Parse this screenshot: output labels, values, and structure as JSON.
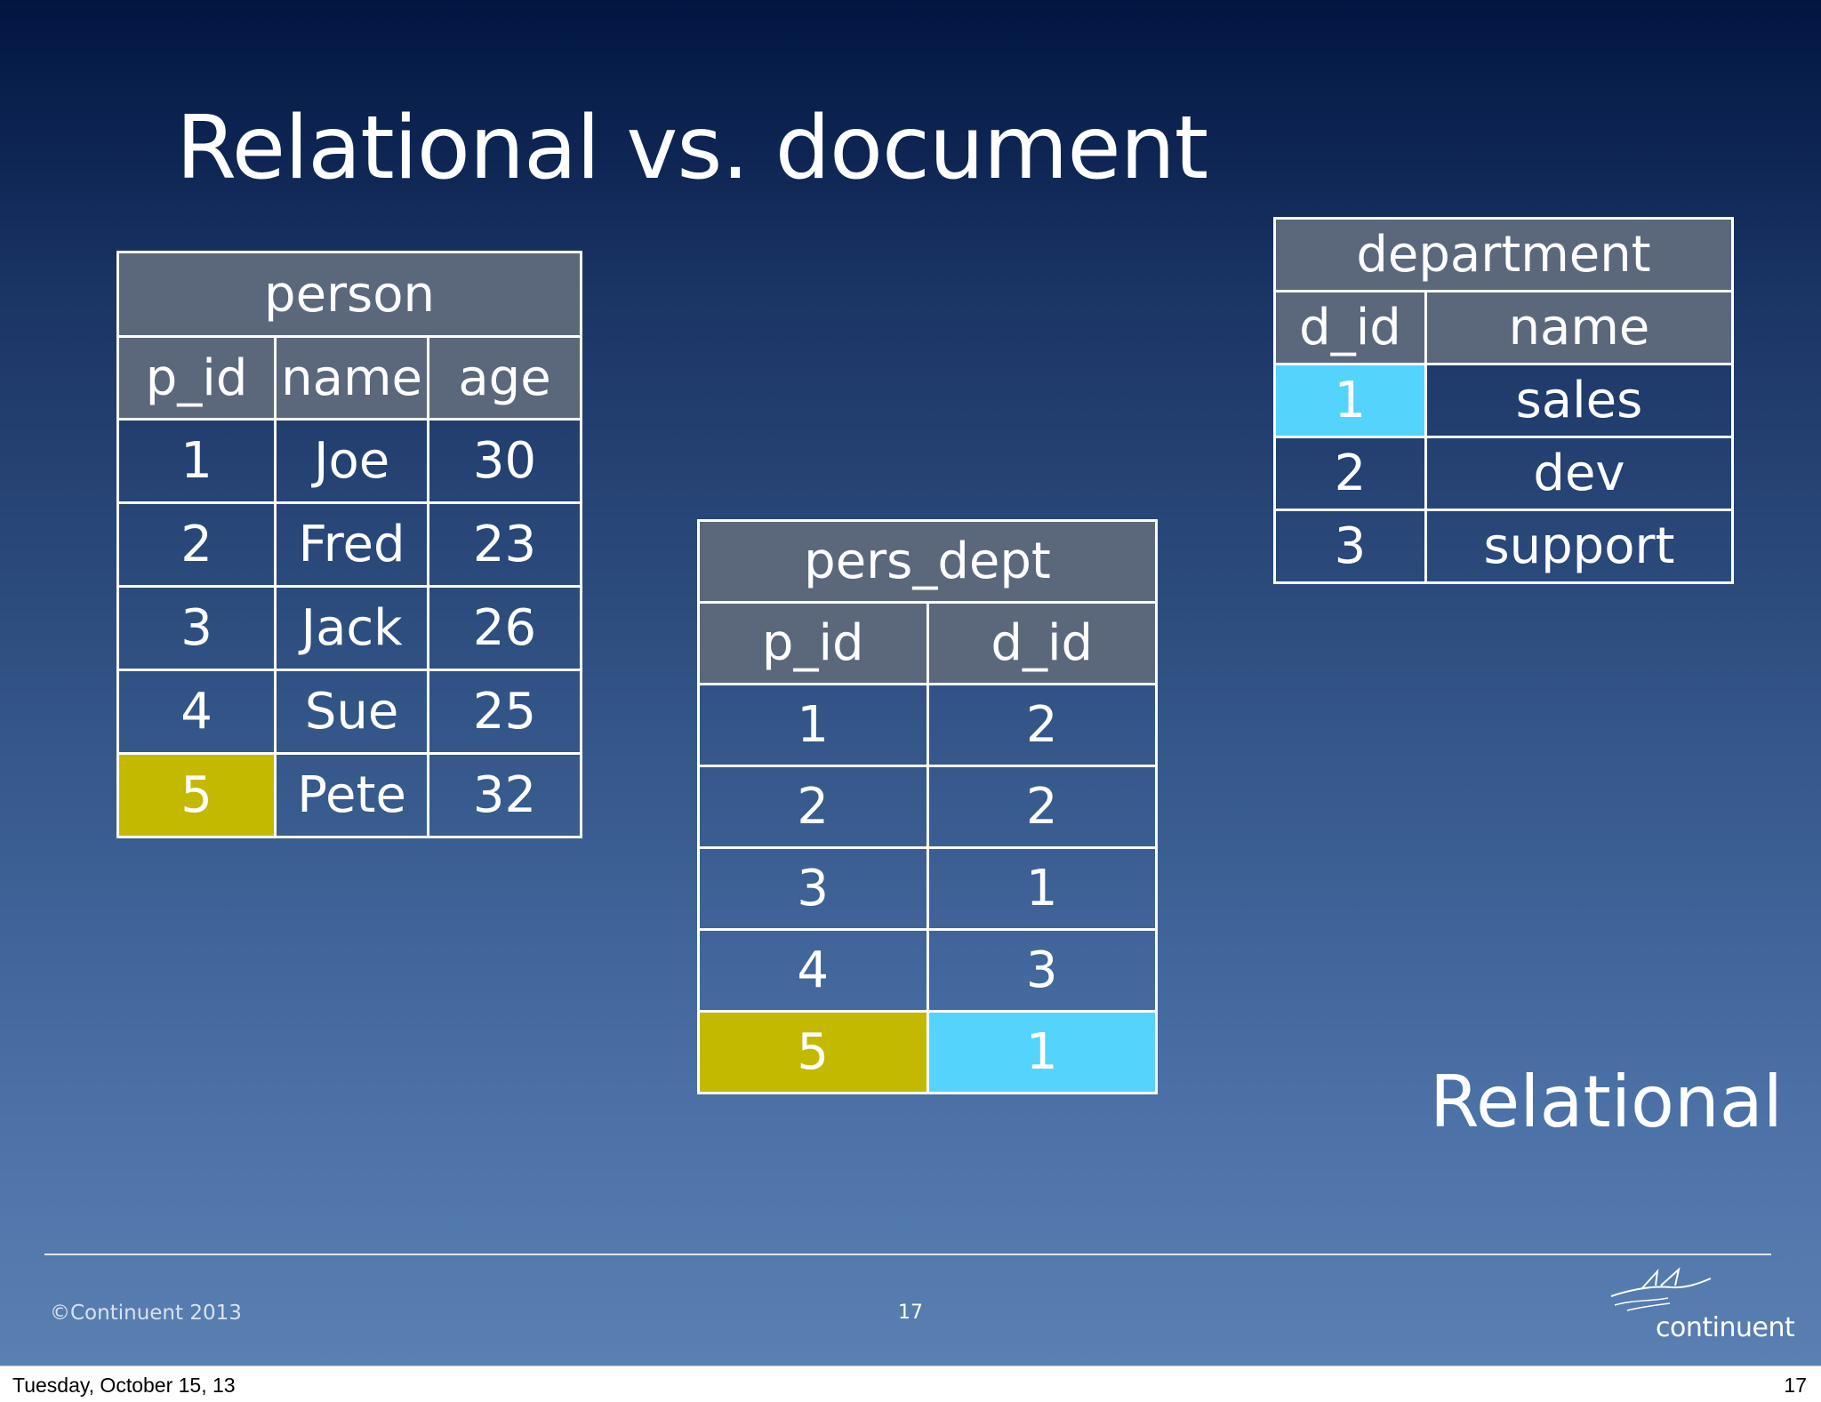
{
  "slide": {
    "title": "Relational vs. document",
    "subtitle": "Relational",
    "copyright": "©Continuent 2013",
    "slide_number": "17",
    "logo_text": "continuent"
  },
  "tables": {
    "person": {
      "name": "person",
      "columns": [
        "p_id",
        "name",
        "age"
      ],
      "rows": [
        [
          "1",
          "Joe",
          "30"
        ],
        [
          "2",
          "Fred",
          "23"
        ],
        [
          "3",
          "Jack",
          "26"
        ],
        [
          "4",
          "Sue",
          "25"
        ],
        [
          "5",
          "Pete",
          "32"
        ]
      ]
    },
    "pers_dept": {
      "name": "pers_dept",
      "columns": [
        "p_id",
        "d_id"
      ],
      "rows": [
        [
          "1",
          "2"
        ],
        [
          "2",
          "2"
        ],
        [
          "3",
          "1"
        ],
        [
          "4",
          "3"
        ],
        [
          "5",
          "1"
        ]
      ]
    },
    "department": {
      "name": "department",
      "columns": [
        "d_id",
        "name"
      ],
      "rows": [
        [
          "1",
          "sales"
        ],
        [
          "2",
          "dev"
        ],
        [
          "3",
          "support"
        ]
      ]
    }
  },
  "highlights": {
    "yellow": "#c3b900",
    "cyan": "#54d4fc"
  },
  "viewer": {
    "date": "Tuesday, October 15, 13",
    "page": "17"
  }
}
